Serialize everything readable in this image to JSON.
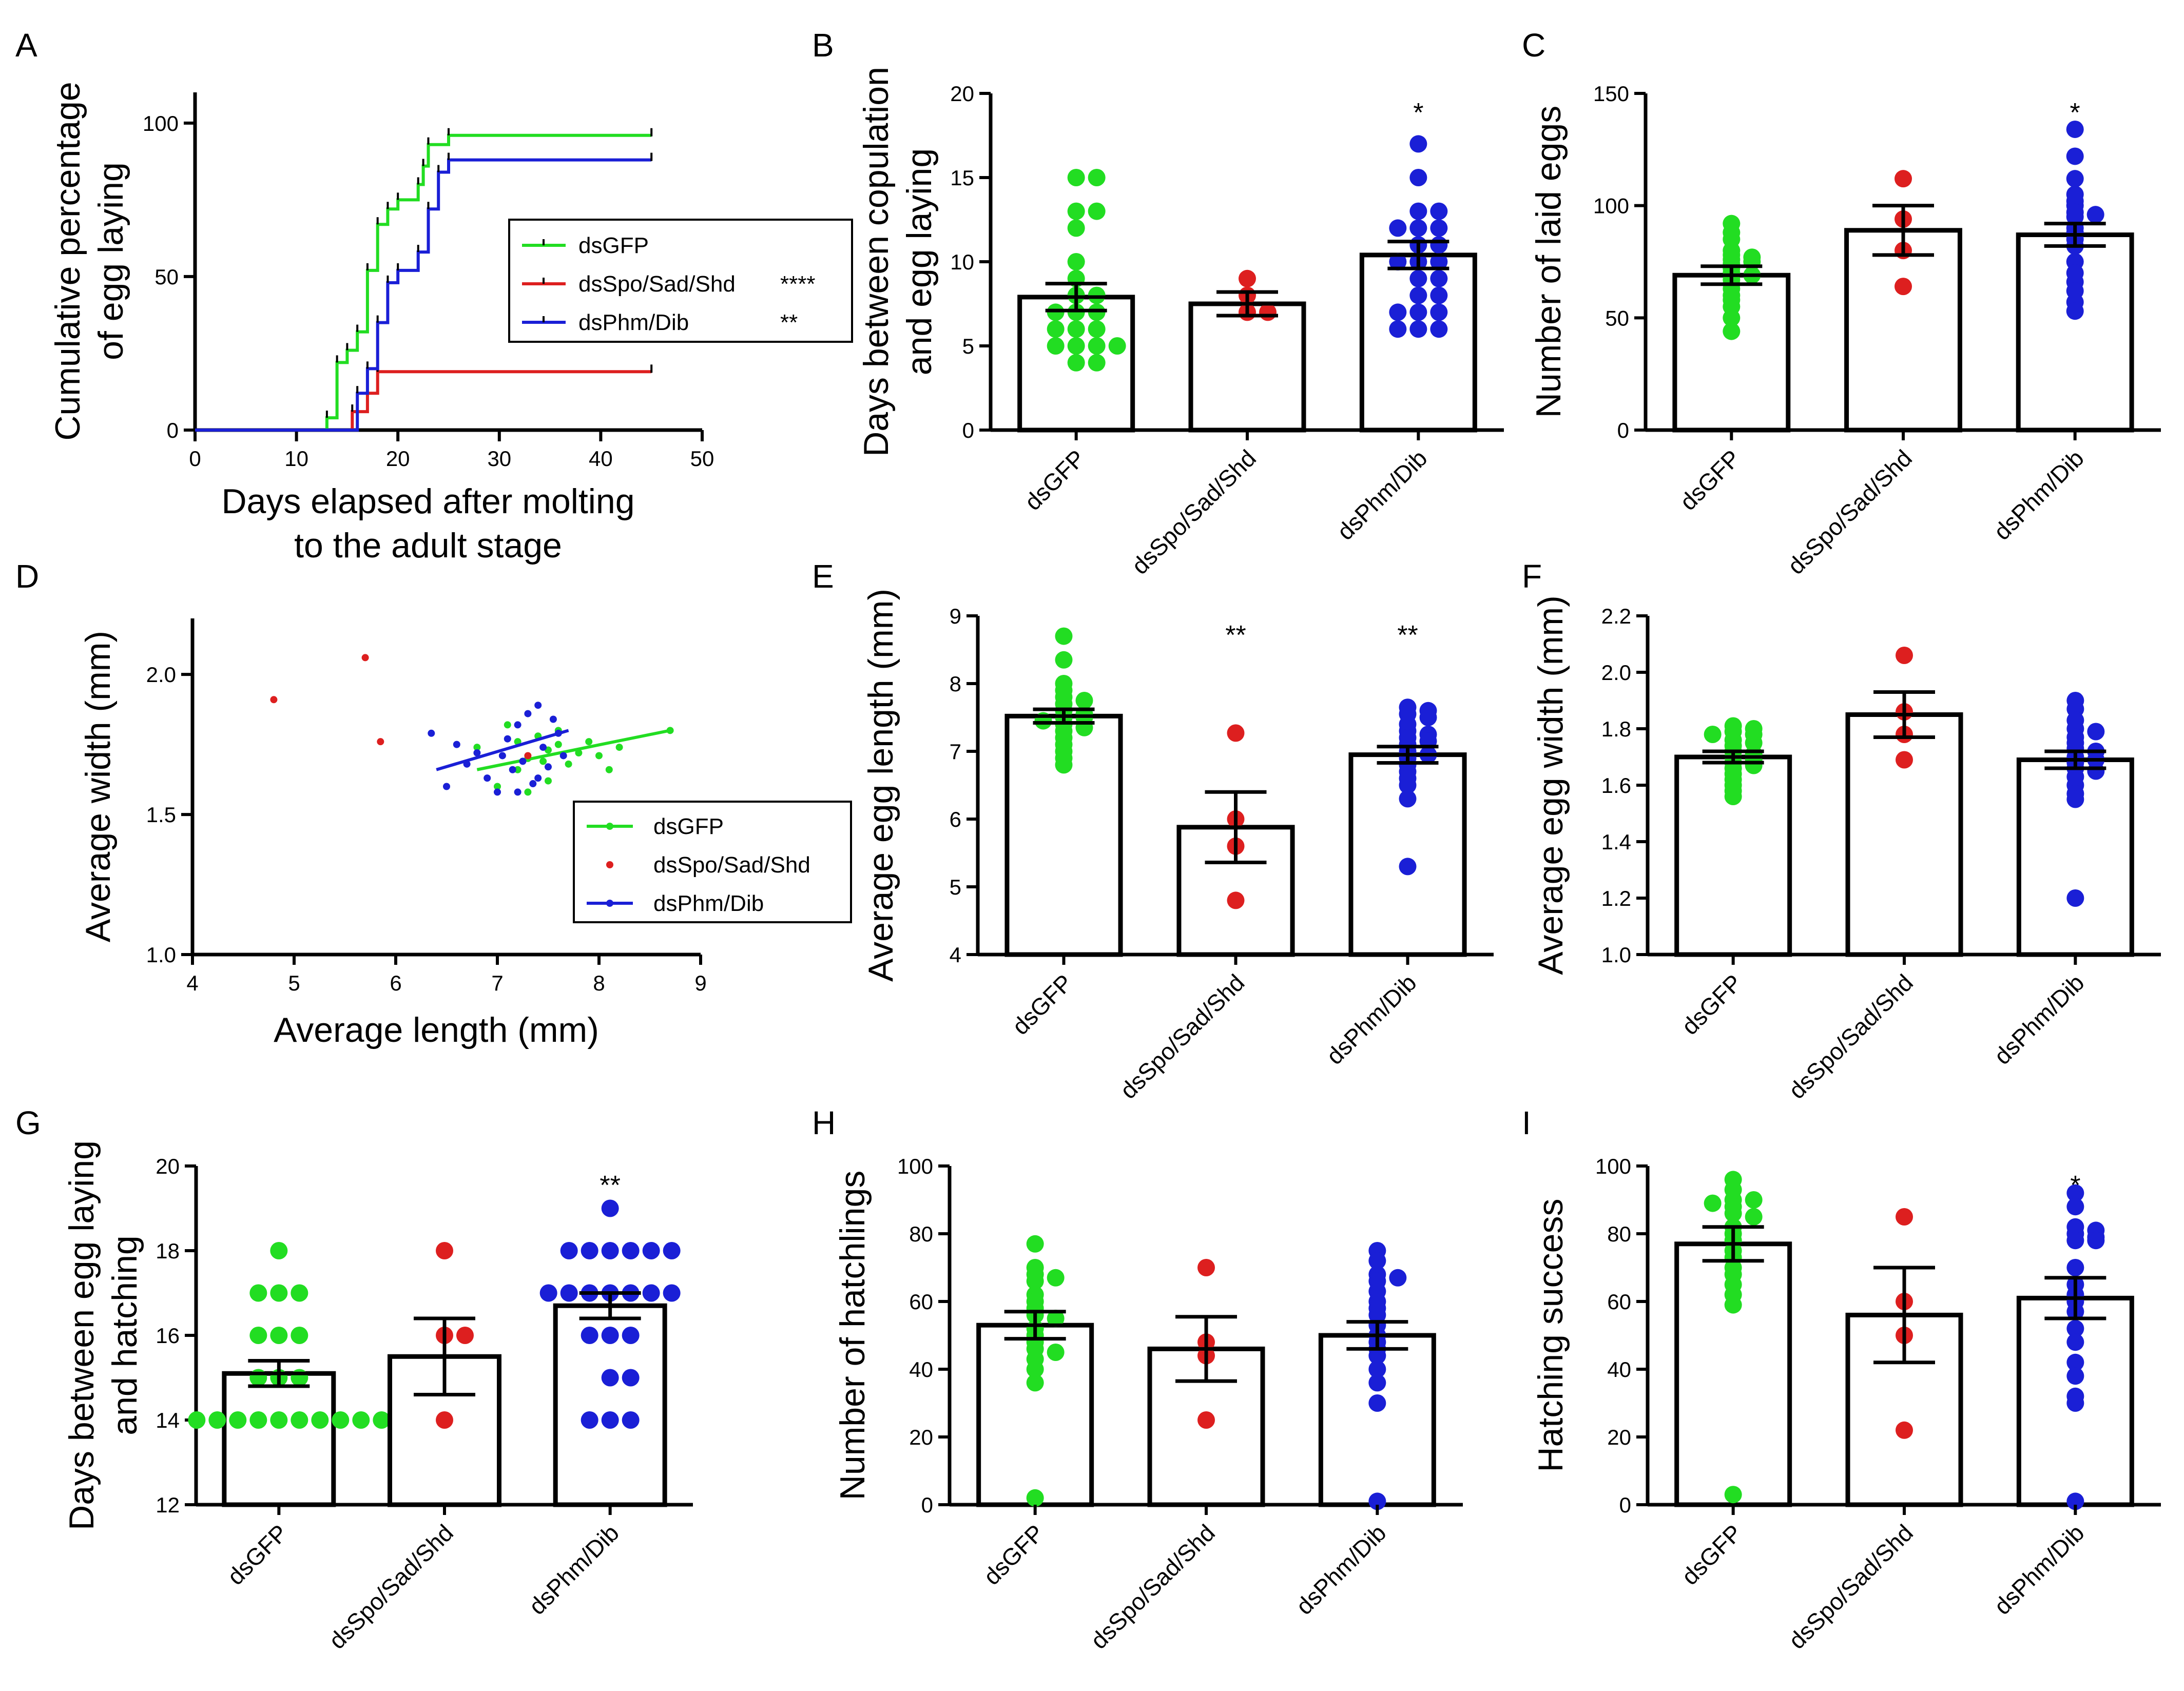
{
  "colors": {
    "green": "#22dd22",
    "red": "#dd1f1f",
    "blue": "#1a1fd6"
  },
  "chart_data": [
    {
      "id": "A",
      "letter": "A",
      "type": "line",
      "title": "",
      "xlabel": "Days elapsed after molting to the adult stage",
      "xlabel_lines": [
        "Days elapsed after molting",
        "to the adult stage"
      ],
      "ylabel": "Cumulative percentage of egg laying",
      "ylabel_lines": [
        "Cumulative percentage",
        "of egg laying"
      ],
      "xlim": [
        0,
        50
      ],
      "ylim": [
        0,
        110
      ],
      "xticks": [
        0,
        10,
        20,
        30,
        40,
        50
      ],
      "yticks": [
        0,
        50,
        100
      ],
      "legend_position": "center-right",
      "series": [
        {
          "name": "dsGFP",
          "color": "#22dd22",
          "sig": "",
          "steps": [
            [
              0,
              0
            ],
            [
              13,
              0
            ],
            [
              13,
              4
            ],
            [
              14,
              4
            ],
            [
              14,
              22
            ],
            [
              15,
              22
            ],
            [
              15,
              26
            ],
            [
              16,
              26
            ],
            [
              16,
              32
            ],
            [
              17,
              32
            ],
            [
              17,
              52
            ],
            [
              18,
              52
            ],
            [
              18,
              67
            ],
            [
              19,
              67
            ],
            [
              19,
              72
            ],
            [
              20,
              72
            ],
            [
              20,
              75
            ],
            [
              22,
              75
            ],
            [
              22,
              80
            ],
            [
              22.5,
              80
            ],
            [
              22.5,
              86
            ],
            [
              23,
              86
            ],
            [
              23,
              93
            ],
            [
              25,
              93
            ],
            [
              25,
              96
            ],
            [
              45,
              96
            ]
          ]
        },
        {
          "name": "dsSpo/Sad/Shd",
          "color": "#dd1f1f",
          "sig": "****",
          "steps": [
            [
              0,
              0
            ],
            [
              15.5,
              0
            ],
            [
              15.5,
              6
            ],
            [
              17,
              6
            ],
            [
              17,
              12
            ],
            [
              18,
              12
            ],
            [
              18,
              19
            ],
            [
              45,
              19
            ]
          ]
        },
        {
          "name": "dsPhm/Dib",
          "color": "#1a1fd6",
          "sig": "**",
          "steps": [
            [
              0,
              0
            ],
            [
              16,
              0
            ],
            [
              16,
              12
            ],
            [
              17,
              12
            ],
            [
              17,
              20
            ],
            [
              18,
              20
            ],
            [
              18,
              35
            ],
            [
              19,
              35
            ],
            [
              19,
              48
            ],
            [
              20,
              48
            ],
            [
              20,
              52
            ],
            [
              22,
              52
            ],
            [
              22,
              58
            ],
            [
              23,
              58
            ],
            [
              23,
              72
            ],
            [
              24,
              72
            ],
            [
              24,
              84
            ],
            [
              25,
              84
            ],
            [
              25,
              88
            ],
            [
              45,
              88
            ]
          ]
        }
      ]
    },
    {
      "id": "B",
      "letter": "B",
      "type": "bar",
      "ylabel": "Days between copulation and egg laying",
      "ylabel_lines": [
        "Days between copulation",
        "and egg laying"
      ],
      "ylim": [
        0,
        20
      ],
      "yticks": [
        0,
        5,
        10,
        15,
        20
      ],
      "categories": [
        "dsGFP",
        "dsSpo/Sad/Shd",
        "dsPhm/Dib"
      ],
      "means": [
        7.9,
        7.5,
        10.4
      ],
      "sem": [
        0.8,
        0.7,
        0.8
      ],
      "sig": [
        "",
        "",
        "*"
      ],
      "points": [
        [
          15,
          15,
          13,
          13,
          12,
          10,
          9,
          8,
          8,
          7,
          7,
          7,
          6,
          6,
          6,
          5,
          5,
          5,
          5,
          4,
          4
        ],
        [
          9,
          8,
          7,
          7
        ],
        [
          17,
          15,
          13,
          13,
          12,
          12,
          12,
          11,
          11,
          10,
          10,
          10,
          9,
          9,
          8,
          8,
          7,
          7,
          7,
          6,
          6,
          6
        ]
      ]
    },
    {
      "id": "C",
      "letter": "C",
      "type": "bar",
      "ylabel": "Number of laid eggs",
      "ylabel_lines": [
        "Number of laid eggs"
      ],
      "ylim": [
        0,
        150
      ],
      "yticks": [
        0,
        50,
        100,
        150
      ],
      "categories": [
        "dsGFP",
        "dsSpo/Sad/Shd",
        "dsPhm/Dib"
      ],
      "means": [
        69,
        89,
        87
      ],
      "sem": [
        4,
        11,
        5
      ],
      "sig": [
        "",
        "",
        "*"
      ],
      "points": [
        [
          92,
          88,
          85,
          80,
          78,
          77,
          76,
          75,
          74,
          72,
          70,
          69,
          67,
          65,
          63,
          60,
          58,
          55,
          50,
          44
        ],
        [
          112,
          94,
          80,
          64
        ],
        [
          134,
          122,
          112,
          105,
          102,
          100,
          97,
          96,
          95,
          90,
          88,
          85,
          82,
          75,
          70,
          66,
          62,
          57,
          53
        ]
      ]
    },
    {
      "id": "D",
      "letter": "D",
      "type": "scatter",
      "xlabel": "Average length (mm)",
      "ylabel": "Average width (mm)",
      "xlim": [
        4,
        9
      ],
      "ylim": [
        1.0,
        2.2
      ],
      "xticks": [
        4,
        5,
        6,
        7,
        8,
        9
      ],
      "yticks": [
        1.0,
        1.5,
        2.0
      ],
      "tick_labels_y": [
        "1.0",
        "1.5",
        "2.0"
      ],
      "legend_position": "bottom-right",
      "series": [
        {
          "name": "dsGFP",
          "color": "#22dd22",
          "fit": [
            [
              6.8,
              1.66
            ],
            [
              8.7,
              1.8
            ]
          ],
          "points": [
            [
              6.8,
              1.74
            ],
            [
              7.0,
              1.6
            ],
            [
              7.1,
              1.82
            ],
            [
              7.2,
              1.66
            ],
            [
              7.3,
              1.7
            ],
            [
              7.4,
              1.78
            ],
            [
              7.5,
              1.62
            ],
            [
              7.6,
              1.75
            ],
            [
              7.7,
              1.68
            ],
            [
              7.3,
              1.58
            ],
            [
              7.5,
              1.73
            ],
            [
              7.8,
              1.72
            ],
            [
              7.9,
              1.76
            ],
            [
              8.0,
              1.71
            ],
            [
              8.2,
              1.74
            ],
            [
              8.1,
              1.66
            ],
            [
              7.6,
              1.8
            ],
            [
              8.7,
              1.8
            ],
            [
              7.2,
              1.76
            ],
            [
              7.45,
              1.69
            ]
          ]
        },
        {
          "name": "dsSpo/Sad/Shd",
          "color": "#dd1f1f",
          "fit": null,
          "points": [
            [
              4.8,
              1.91
            ],
            [
              5.7,
              2.06
            ],
            [
              5.85,
              1.76
            ],
            [
              7.3,
              1.71
            ]
          ]
        },
        {
          "name": "dsPhm/Dib",
          "color": "#1a1fd6",
          "fit": [
            [
              6.4,
              1.66
            ],
            [
              7.7,
              1.8
            ]
          ],
          "points": [
            [
              6.35,
              1.79
            ],
            [
              6.5,
              1.6
            ],
            [
              6.6,
              1.75
            ],
            [
              6.7,
              1.68
            ],
            [
              6.8,
              1.72
            ],
            [
              6.9,
              1.63
            ],
            [
              7.0,
              1.58
            ],
            [
              7.05,
              1.71
            ],
            [
              7.1,
              1.77
            ],
            [
              7.15,
              1.66
            ],
            [
              7.2,
              1.82
            ],
            [
              7.25,
              1.69
            ],
            [
              7.3,
              1.86
            ],
            [
              7.35,
              1.61
            ],
            [
              7.4,
              1.89
            ],
            [
              7.45,
              1.74
            ],
            [
              7.5,
              1.67
            ],
            [
              7.55,
              1.84
            ],
            [
              7.6,
              1.79
            ],
            [
              7.65,
              1.71
            ],
            [
              7.2,
              1.58
            ],
            [
              7.4,
              1.63
            ]
          ]
        }
      ]
    },
    {
      "id": "E",
      "letter": "E",
      "type": "bar",
      "ylabel": "Average egg length (mm)",
      "ylabel_lines": [
        "Average egg length (mm)"
      ],
      "ylim": [
        4,
        9
      ],
      "yticks": [
        4,
        5,
        6,
        7,
        8,
        9
      ],
      "categories": [
        "dsGFP",
        "dsSpo/Sad/Shd",
        "dsPhm/Dib"
      ],
      "means": [
        7.52,
        5.88,
        6.95
      ],
      "sem": [
        0.1,
        0.52,
        0.12
      ],
      "sig": [
        "",
        "**",
        "**"
      ],
      "points": [
        [
          8.7,
          8.35,
          8.0,
          7.9,
          7.8,
          7.75,
          7.7,
          7.6,
          7.55,
          7.5,
          7.5,
          7.45,
          7.4,
          7.35,
          7.3,
          7.2,
          7.1,
          7.0,
          6.9,
          6.8
        ],
        [
          7.27,
          6.0,
          5.6,
          4.8
        ],
        [
          7.65,
          7.6,
          7.55,
          7.5,
          7.4,
          7.3,
          7.25,
          7.2,
          7.15,
          7.1,
          7.0,
          6.95,
          6.9,
          6.8,
          6.7,
          6.6,
          6.5,
          6.3,
          5.3
        ]
      ]
    },
    {
      "id": "F",
      "letter": "F",
      "type": "bar",
      "ylabel": "Average egg width (mm)",
      "ylabel_lines": [
        "Average egg width (mm)"
      ],
      "ylim": [
        1.0,
        2.2
      ],
      "yticks": [
        1.0,
        1.2,
        1.4,
        1.6,
        1.8,
        2.0,
        2.2
      ],
      "tick_labels_y": [
        "1.0",
        "1.2",
        "1.4",
        "1.6",
        "1.8",
        "2.0",
        "2.2"
      ],
      "categories": [
        "dsGFP",
        "dsSpo/Sad/Shd",
        "dsPhm/Dib"
      ],
      "means": [
        1.7,
        1.85,
        1.69
      ],
      "sem": [
        0.02,
        0.08,
        0.03
      ],
      "sig": [
        "",
        "",
        ""
      ],
      "points": [
        [
          1.81,
          1.8,
          1.79,
          1.78,
          1.78,
          1.76,
          1.75,
          1.74,
          1.72,
          1.71,
          1.7,
          1.69,
          1.68,
          1.67,
          1.66,
          1.64,
          1.62,
          1.6,
          1.58,
          1.56
        ],
        [
          2.06,
          1.86,
          1.78,
          1.69
        ],
        [
          1.9,
          1.87,
          1.83,
          1.8,
          1.79,
          1.77,
          1.75,
          1.73,
          1.72,
          1.7,
          1.69,
          1.68,
          1.66,
          1.65,
          1.63,
          1.6,
          1.57,
          1.55,
          1.2
        ]
      ]
    },
    {
      "id": "G",
      "letter": "G",
      "type": "bar",
      "ylabel": "Days between egg laying and hatching",
      "ylabel_lines": [
        "Days between egg laying",
        "and hatching"
      ],
      "ylim": [
        12,
        20
      ],
      "yticks": [
        12,
        14,
        16,
        18,
        20
      ],
      "categories": [
        "dsGFP",
        "dsSpo/Sad/Shd",
        "dsPhm/Dib"
      ],
      "means": [
        15.1,
        15.5,
        16.7
      ],
      "sem": [
        0.3,
        0.9,
        0.3
      ],
      "sig": [
        "",
        "",
        "**"
      ],
      "points": [
        [
          18,
          17,
          17,
          17,
          16,
          16,
          16,
          15,
          15,
          15,
          14,
          14,
          14,
          14,
          14,
          14,
          14,
          14,
          14,
          14
        ],
        [
          18,
          16,
          16,
          14
        ],
        [
          19,
          18,
          18,
          18,
          18,
          18,
          18,
          17,
          17,
          17,
          17,
          17,
          17,
          17,
          16,
          16,
          16,
          15,
          15,
          14,
          14,
          14
        ]
      ]
    },
    {
      "id": "H",
      "letter": "H",
      "type": "bar",
      "ylabel": "Number of hatchlings",
      "ylabel_lines": [
        "Number of hatchlings"
      ],
      "ylim": [
        0,
        100
      ],
      "yticks": [
        0,
        20,
        40,
        60,
        80,
        100
      ],
      "categories": [
        "dsGFP",
        "dsSpo/Sad/Shd",
        "dsPhm/Dib"
      ],
      "means": [
        53,
        46,
        50
      ],
      "sem": [
        4,
        9.5,
        4
      ],
      "sig": [
        "",
        "",
        ""
      ],
      "points": [
        [
          77,
          70,
          68,
          67,
          66,
          62,
          60,
          58,
          56,
          55,
          52,
          50,
          48,
          46,
          45,
          43,
          40,
          36,
          2
        ],
        [
          70,
          48,
          44,
          25
        ],
        [
          75,
          72,
          68,
          67,
          66,
          63,
          60,
          58,
          56,
          53,
          50,
          48,
          46,
          44,
          40,
          36,
          30,
          1
        ]
      ]
    },
    {
      "id": "I",
      "letter": "I",
      "type": "bar",
      "ylabel": "Hatching success",
      "ylabel_lines": [
        "Hatching success"
      ],
      "ylim": [
        0,
        100
      ],
      "yticks": [
        0,
        20,
        40,
        60,
        80,
        100
      ],
      "categories": [
        "dsGFP",
        "dsSpo/Sad/Shd",
        "dsPhm/Dib"
      ],
      "means": [
        77,
        56,
        61
      ],
      "sem": [
        5,
        14,
        6
      ],
      "sig": [
        "",
        "",
        "*"
      ],
      "points": [
        [
          96,
          93,
          90,
          90,
          89,
          88,
          86,
          85,
          82,
          80,
          78,
          75,
          73,
          70,
          68,
          65,
          62,
          59,
          3
        ],
        [
          85,
          60,
          50,
          22
        ],
        [
          92,
          88,
          82,
          81,
          80,
          79,
          78,
          78,
          70,
          65,
          62,
          60,
          57,
          52,
          48,
          42,
          38,
          32,
          30,
          1
        ]
      ]
    }
  ]
}
